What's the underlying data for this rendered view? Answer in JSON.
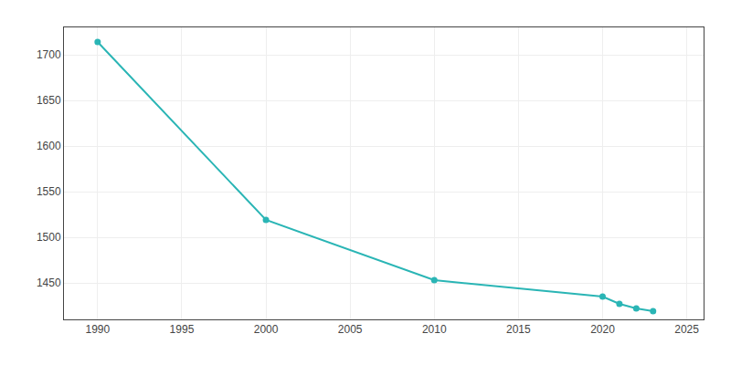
{
  "chart_data": {
    "type": "line",
    "x": [
      1990,
      2000,
      2010,
      2020,
      2021,
      2022,
      2023
    ],
    "values": [
      1714,
      1519,
      1453,
      1435,
      1427,
      1422,
      1419
    ],
    "color": "#2ab5b5",
    "marker": "circle",
    "xlim": [
      1988,
      2026
    ],
    "xticks": [
      1990,
      1995,
      2000,
      2005,
      2010,
      2015,
      2020,
      2025
    ],
    "ylim": [
      1410,
      1730
    ],
    "yticks": [
      1450,
      1500,
      1550,
      1600,
      1650,
      1700
    ],
    "grid": true
  }
}
